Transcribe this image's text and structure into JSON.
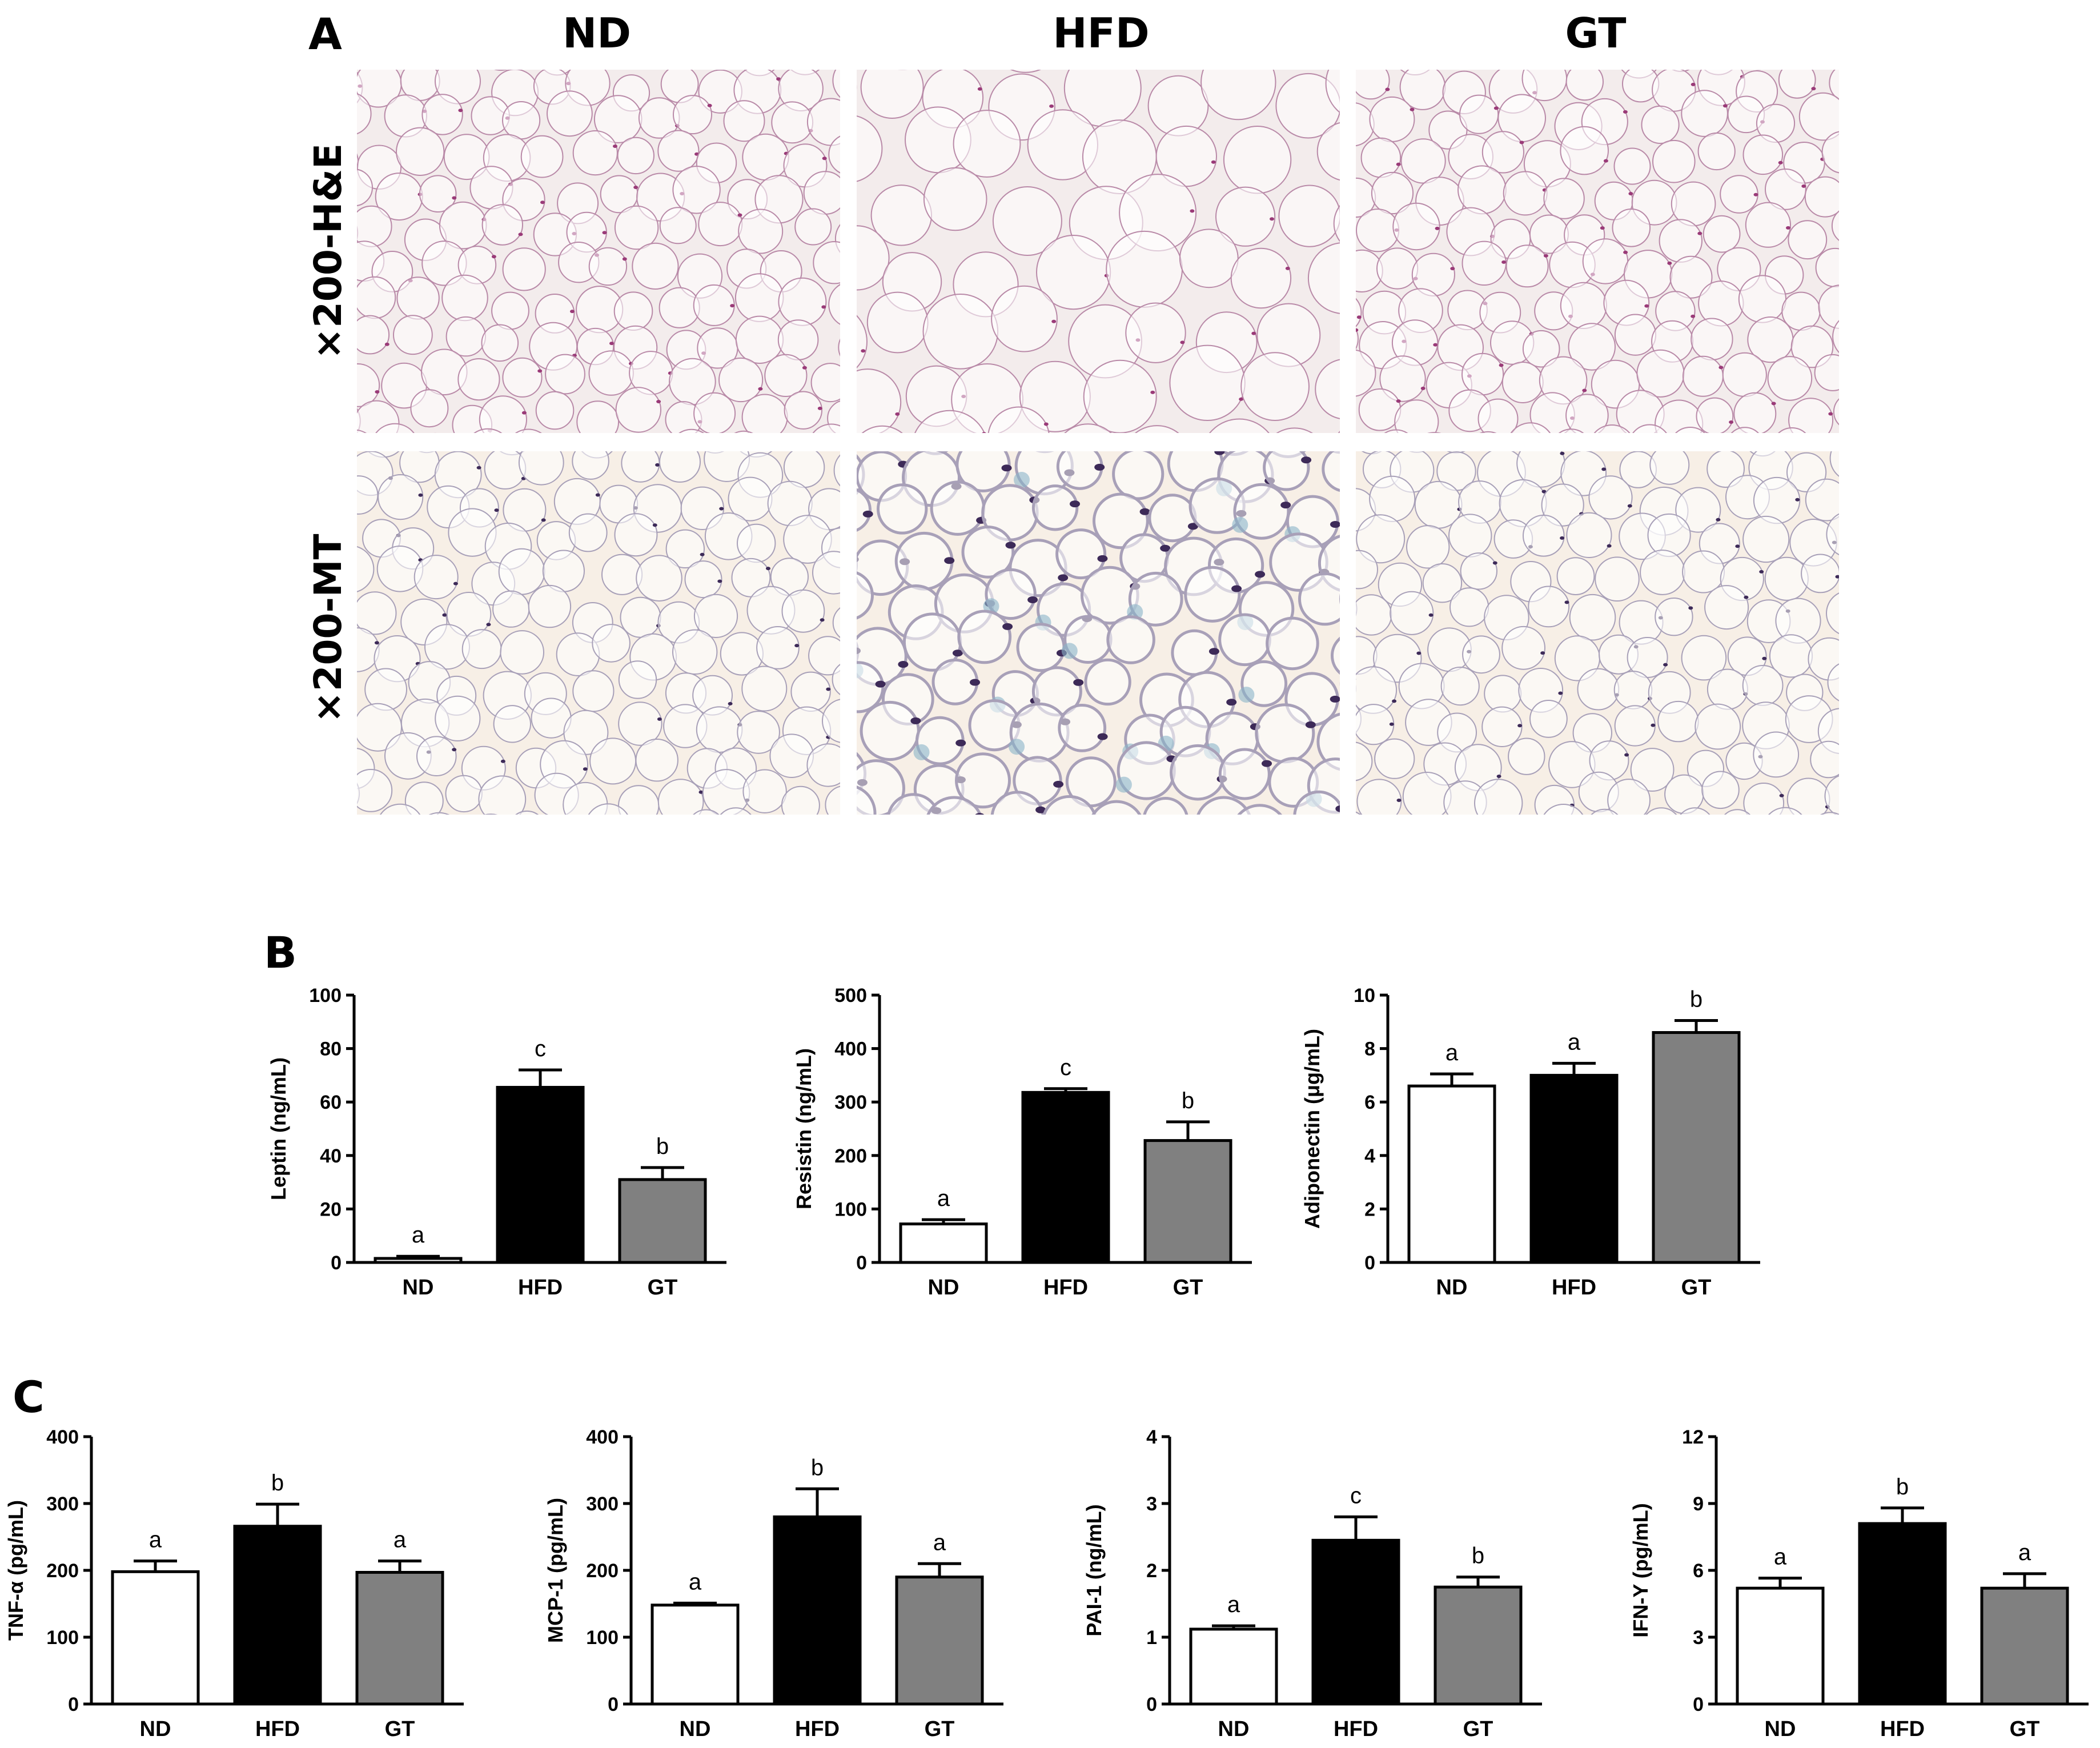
{
  "panel_a": {
    "letter": "A",
    "columns": [
      "ND",
      "HFD",
      "GT"
    ],
    "rows": [
      "×200-H&E",
      "×200-MT"
    ],
    "colors": {
      "he_background": "#f3ecec",
      "he_stain": "#9a3a78",
      "mt_background": "#f7efe6",
      "mt_stain": "#3d2a58",
      "mt_collagen": "#8ab4c8"
    }
  },
  "panel_b": {
    "letter": "B"
  },
  "panel_c": {
    "letter": "C"
  },
  "chart_data": [
    {
      "type": "bar",
      "panel": "B",
      "categories": [
        "ND",
        "HFD",
        "GT"
      ],
      "values": [
        1.5,
        65.5,
        31
      ],
      "errors": [
        0.8,
        6.5,
        4.5
      ],
      "sig_letters": [
        "a",
        "c",
        "b"
      ],
      "ylabel": "Leptin (ng/mL)",
      "ylim": [
        0,
        100
      ],
      "yticks": [
        0,
        20,
        40,
        60,
        80,
        100
      ],
      "bar_colors": [
        "#ffffff",
        "#000000",
        "#808080"
      ]
    },
    {
      "type": "bar",
      "panel": "B",
      "categories": [
        "ND",
        "HFD",
        "GT"
      ],
      "values": [
        72,
        318,
        228
      ],
      "errors": [
        8,
        7,
        35
      ],
      "sig_letters": [
        "a",
        "c",
        "b"
      ],
      "ylabel": "Resistin (ng/mL)",
      "ylim": [
        0,
        500
      ],
      "yticks": [
        0,
        100,
        200,
        300,
        400,
        500
      ],
      "bar_colors": [
        "#ffffff",
        "#000000",
        "#808080"
      ]
    },
    {
      "type": "bar",
      "panel": "B",
      "categories": [
        "ND",
        "HFD",
        "GT"
      ],
      "values": [
        6.6,
        7.0,
        8.6
      ],
      "errors": [
        0.45,
        0.45,
        0.45
      ],
      "sig_letters": [
        "a",
        "a",
        "b"
      ],
      "ylabel": "Adiponectin (μg/mL)",
      "ylim": [
        0,
        10
      ],
      "yticks": [
        0,
        2,
        4,
        6,
        8,
        10
      ],
      "bar_colors": [
        "#ffffff",
        "#000000",
        "#808080"
      ]
    },
    {
      "type": "bar",
      "panel": "C",
      "categories": [
        "ND",
        "HFD",
        "GT"
      ],
      "values": [
        198,
        266,
        197
      ],
      "errors": [
        16,
        33,
        17
      ],
      "sig_letters": [
        "a",
        "b",
        "a"
      ],
      "ylabel": "TNF-α (pg/mL)",
      "ylim": [
        0,
        400
      ],
      "yticks": [
        0,
        100,
        200,
        300,
        400
      ],
      "bar_colors": [
        "#ffffff",
        "#000000",
        "#808080"
      ]
    },
    {
      "type": "bar",
      "panel": "C",
      "categories": [
        "ND",
        "HFD",
        "GT"
      ],
      "values": [
        148,
        280,
        190
      ],
      "errors": [
        3,
        42,
        20
      ],
      "sig_letters": [
        "a",
        "b",
        "a"
      ],
      "ylabel": "MCP-1 (pg/mL)",
      "ylim": [
        0,
        400
      ],
      "yticks": [
        0,
        100,
        200,
        300,
        400
      ],
      "bar_colors": [
        "#ffffff",
        "#000000",
        "#808080"
      ]
    },
    {
      "type": "bar",
      "panel": "C",
      "categories": [
        "ND",
        "HFD",
        "GT"
      ],
      "values": [
        1.12,
        2.45,
        1.75
      ],
      "errors": [
        0.05,
        0.35,
        0.15
      ],
      "sig_letters": [
        "a",
        "c",
        "b"
      ],
      "ylabel": "PAI-1  (ng/mL)",
      "ylim": [
        0,
        4
      ],
      "yticks": [
        0,
        1,
        2,
        3,
        4
      ],
      "bar_colors": [
        "#ffffff",
        "#000000",
        "#808080"
      ]
    },
    {
      "type": "bar",
      "panel": "C",
      "categories": [
        "ND",
        "HFD",
        "GT"
      ],
      "values": [
        5.2,
        8.1,
        5.2
      ],
      "errors": [
        0.45,
        0.7,
        0.65
      ],
      "sig_letters": [
        "a",
        "b",
        "a"
      ],
      "ylabel": "IFN-Y (pg/mL)",
      "ylim": [
        0,
        12
      ],
      "yticks": [
        0,
        3,
        6,
        9,
        12
      ],
      "bar_colors": [
        "#ffffff",
        "#000000",
        "#808080"
      ]
    }
  ]
}
